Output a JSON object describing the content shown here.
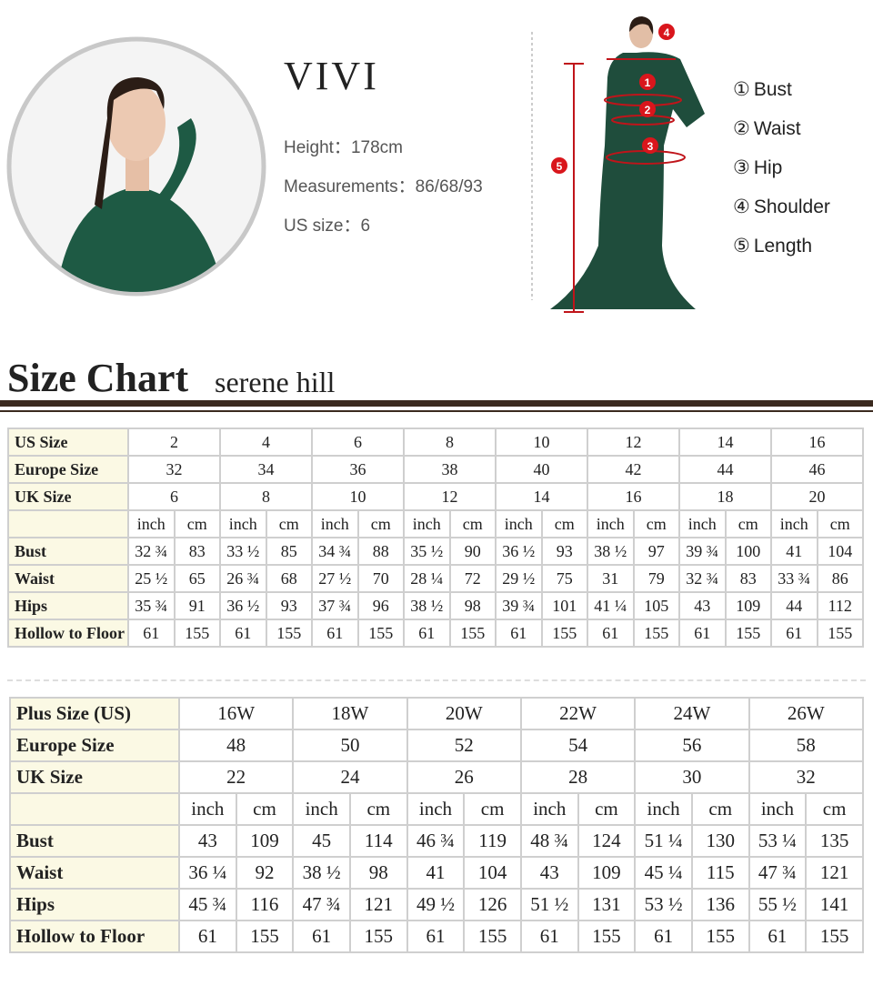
{
  "model": {
    "name": "VIVI",
    "height_label": "Height：",
    "height": "178cm",
    "measurements_label": "Measurements：",
    "measurements": "86/68/93",
    "us_size_label": "US size：",
    "us_size": "6"
  },
  "diagram": {
    "markers": [
      "1",
      "2",
      "3",
      "4",
      "5"
    ],
    "legend": [
      {
        "mark": "①",
        "label": "Bust"
      },
      {
        "mark": "②",
        "label": "Waist"
      },
      {
        "mark": "③",
        "label": "Hip"
      },
      {
        "mark": "④",
        "label": "Shoulder"
      },
      {
        "mark": "⑤",
        "label": "Length"
      }
    ]
  },
  "title": "Size Chart",
  "subtitle": "serene hill",
  "tables": [
    {
      "size_rows": [
        {
          "label": "US Size",
          "values": [
            "2",
            "4",
            "6",
            "8",
            "10",
            "12",
            "14",
            "16"
          ]
        },
        {
          "label": "Europe Size",
          "values": [
            "32",
            "34",
            "36",
            "38",
            "40",
            "42",
            "44",
            "46"
          ]
        },
        {
          "label": "UK Size",
          "values": [
            "6",
            "8",
            "10",
            "12",
            "14",
            "16",
            "18",
            "20"
          ]
        }
      ],
      "units": [
        "inch",
        "cm",
        "inch",
        "cm",
        "inch",
        "cm",
        "inch",
        "cm",
        "inch",
        "cm",
        "inch",
        "cm",
        "inch",
        "cm",
        "inch",
        "cm"
      ],
      "measure_rows": [
        {
          "label": "Bust",
          "values": [
            "32 ¾",
            "83",
            "33 ½",
            "85",
            "34 ¾",
            "88",
            "35 ½",
            "90",
            "36 ½",
            "93",
            "38 ½",
            "97",
            "39 ¾",
            "100",
            "41",
            "104"
          ]
        },
        {
          "label": "Waist",
          "values": [
            "25 ½",
            "65",
            "26 ¾",
            "68",
            "27 ½",
            "70",
            "28 ¼",
            "72",
            "29 ½",
            "75",
            "31",
            "79",
            "32 ¾",
            "83",
            "33 ¾",
            "86"
          ]
        },
        {
          "label": "Hips",
          "values": [
            "35 ¾",
            "91",
            "36 ½",
            "93",
            "37 ¾",
            "96",
            "38 ½",
            "98",
            "39 ¾",
            "101",
            "41 ¼",
            "105",
            "43",
            "109",
            "44",
            "112"
          ]
        },
        {
          "label": "Hollow to Floor",
          "values": [
            "61",
            "155",
            "61",
            "155",
            "61",
            "155",
            "61",
            "155",
            "61",
            "155",
            "61",
            "155",
            "61",
            "155",
            "61",
            "155"
          ]
        }
      ]
    },
    {
      "size_rows": [
        {
          "label": "Plus Size (US)",
          "values": [
            "16W",
            "18W",
            "20W",
            "22W",
            "24W",
            "26W"
          ]
        },
        {
          "label": "Europe Size",
          "values": [
            "48",
            "50",
            "52",
            "54",
            "56",
            "58"
          ]
        },
        {
          "label": "UK Size",
          "values": [
            "22",
            "24",
            "26",
            "28",
            "30",
            "32"
          ]
        }
      ],
      "units": [
        "inch",
        "cm",
        "inch",
        "cm",
        "inch",
        "cm",
        "inch",
        "cm",
        "inch",
        "cm",
        "inch",
        "cm"
      ],
      "measure_rows": [
        {
          "label": "Bust",
          "values": [
            "43",
            "109",
            "45",
            "114",
            "46 ¾",
            "119",
            "48 ¾",
            "124",
            "51 ¼",
            "130",
            "53 ¼",
            "135"
          ]
        },
        {
          "label": "Waist",
          "values": [
            "36 ¼",
            "92",
            "38 ½",
            "98",
            "41",
            "104",
            "43",
            "109",
            "45 ¼",
            "115",
            "47 ¾",
            "121"
          ]
        },
        {
          "label": "Hips",
          "values": [
            "45 ¾",
            "116",
            "47 ¾",
            "121",
            "49 ½",
            "126",
            "51 ½",
            "131",
            "53 ½",
            "136",
            "55 ½",
            "141"
          ]
        },
        {
          "label": "Hollow to Floor",
          "values": [
            "61",
            "155",
            "61",
            "155",
            "61",
            "155",
            "61",
            "155",
            "61",
            "155",
            "61",
            "155"
          ]
        }
      ]
    }
  ]
}
